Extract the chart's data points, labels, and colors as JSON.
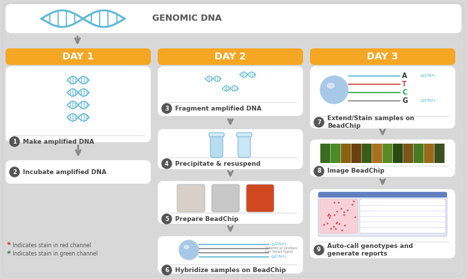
{
  "bg_color": "#d8d8d8",
  "white": "#ffffff",
  "orange": "#f5a623",
  "light_blue": "#7ec8e3",
  "dark_gray": "#555555",
  "med_gray": "#888888",
  "light_gray": "#eeeeee",
  "bead_blue": "#a8c8e8",
  "title_top": "GENOMIC DNA",
  "day1_label": "DAY 1",
  "day2_label": "DAY 2",
  "day3_label": "DAY 3",
  "step1": "Make amplified DNA",
  "step2": "Incubate amplified DNA",
  "step3": "Fragment amplified DNA",
  "step4": "Precipitate & resuspend",
  "step5": "Prepare BeadChip",
  "step6": "Hybridize samples on BeadChip",
  "step7": "Extend/Stain samples on\nBeadChip",
  "step8": "Image BeadChip",
  "step9": "Auto-call genotypes and\ngenerate reports",
  "legend1": "* Indicates stain in red channel",
  "legend2": "* Indicates stain in green channel"
}
